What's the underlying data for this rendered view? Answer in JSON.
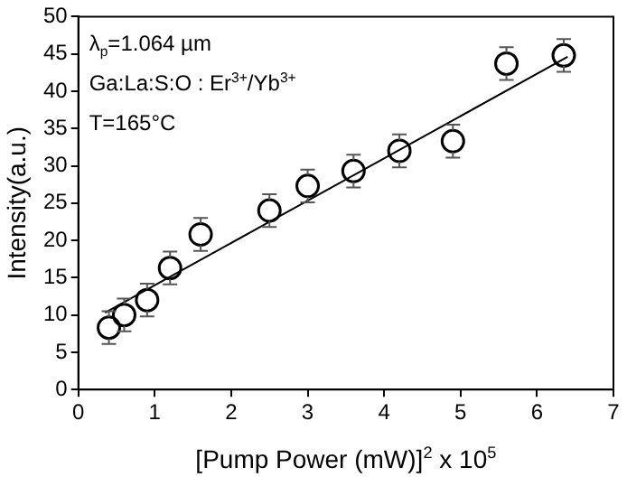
{
  "chart_data": {
    "type": "scatter",
    "xlabel": "[Pump Power (mW)]$^{2}$ x 10$^{5}$",
    "ylabel": "Intensity(a.u.)",
    "annotations": [
      "λ$_{p}$=1.064 µm",
      "Ga:La:S:O : Er$^{3+}$/Yb$^{3+}$",
      "T=165°C"
    ],
    "series": [
      {
        "color": "#000000",
        "x": [
          0.4,
          0.6,
          0.9,
          1.2,
          1.6,
          2.5,
          3.0,
          3.6,
          4.2,
          4.9,
          5.6,
          6.35
        ],
        "values": [
          8.3,
          10,
          12,
          16.3,
          20.8,
          24,
          27.3,
          29.3,
          32,
          33.3,
          43.7,
          44.8
        ],
        "errors": [
          2.2,
          2.2,
          2.2,
          2.2,
          2.2,
          2.2,
          2.2,
          2.2,
          2.2,
          2.2,
          2.2,
          2.2
        ],
        "marker": "circle"
      },
      {
        "type": "line",
        "color": "#000000",
        "x": [
          0.35,
          6.4
        ],
        "values": [
          10.3,
          44.6
        ],
        "marker": "none",
        "line_style": "solid"
      }
    ],
    "xlim": [
      0,
      7
    ],
    "xticks": [
      0,
      1,
      2,
      3,
      4,
      5,
      6,
      7
    ],
    "ylim": [
      0,
      50
    ],
    "yticks": [
      0,
      5,
      10,
      15,
      20,
      25,
      30,
      35,
      40,
      45,
      50
    ],
    "grid": false,
    "legend": false
  }
}
